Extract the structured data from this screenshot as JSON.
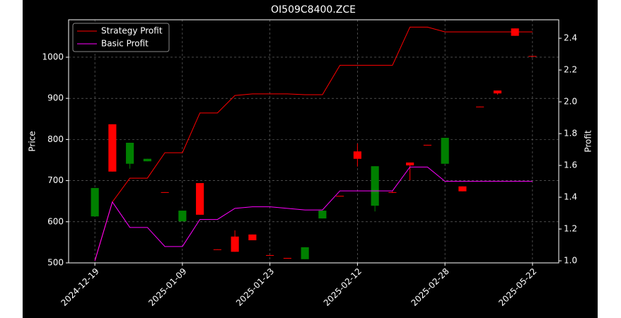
{
  "chart_data": {
    "type": "candlestick",
    "title": "OI509C8400.ZCE",
    "ylabel": "Price",
    "y2label": "Profit",
    "categories": [
      "2024-12-19",
      null,
      null,
      null,
      null,
      "2025-01-09",
      null,
      null,
      null,
      null,
      "2025-01-23",
      null,
      null,
      null,
      null,
      "2025-02-12",
      null,
      null,
      null,
      null,
      "2025-02-28",
      null,
      null,
      null,
      null,
      "2025-05-22"
    ],
    "candles": {
      "up_color": "#008000",
      "down_color": "#ff0000",
      "open": [
        613,
        837,
        741,
        747,
        672,
        601,
        694,
        533,
        564,
        569,
        519,
        512,
        509,
        608,
        663,
        771,
        639,
        672,
        744,
        787,
        741,
        686,
        880,
        919,
        1070,
        1003
      ],
      "high": [
        682,
        837,
        792,
        753,
        672,
        627,
        694,
        533,
        579,
        569,
        519,
        512,
        538,
        627,
        663,
        790,
        735,
        674,
        744,
        787,
        804,
        686,
        880,
        919,
        1070,
        1003
      ],
      "low": [
        613,
        722,
        729,
        747,
        671,
        601,
        617,
        532,
        527,
        555,
        518,
        511,
        509,
        608,
        662,
        734,
        625,
        670,
        701,
        786,
        741,
        674,
        879,
        909,
        1052,
        1002
      ],
      "close": [
        682,
        722,
        792,
        753,
        671,
        627,
        617,
        532,
        527,
        555,
        518,
        511,
        538,
        627,
        662,
        753,
        735,
        671,
        737,
        786,
        804,
        674,
        879,
        912,
        1052,
        1002
      ]
    },
    "series": [
      {
        "name": "Strategy Profit",
        "color": "#ff0000",
        "axis": "y2",
        "values": [
          1.0,
          1.37,
          1.52,
          1.52,
          1.68,
          1.68,
          1.93,
          1.93,
          2.04,
          2.05,
          2.05,
          2.05,
          2.045,
          2.045,
          2.23,
          2.23,
          2.23,
          2.23,
          2.47,
          2.47,
          2.44,
          2.44,
          2.44,
          2.44,
          2.44,
          2.44
        ]
      },
      {
        "name": "Basic Profit",
        "color": "#ff00ff",
        "axis": "y2",
        "values": [
          1.0,
          1.37,
          1.21,
          1.21,
          1.09,
          1.09,
          1.26,
          1.26,
          1.33,
          1.34,
          1.34,
          1.33,
          1.32,
          1.32,
          1.44,
          1.44,
          1.44,
          1.44,
          1.59,
          1.59,
          1.5,
          1.5,
          1.5,
          1.5,
          1.5,
          1.5
        ]
      }
    ],
    "ylim": [
      500,
      1091
    ],
    "yticks": [
      500,
      600,
      700,
      800,
      900,
      1000
    ],
    "y2lim": [
      0.987,
      2.516
    ],
    "y2ticks": [
      {
        "value": 1.0,
        "label": "1.0"
      },
      1.2,
      1.4,
      1.6,
      1.8,
      {
        "value": 2.0,
        "label": "2.0"
      },
      2.2,
      2.4
    ],
    "grid": true,
    "legend": "upper left"
  }
}
